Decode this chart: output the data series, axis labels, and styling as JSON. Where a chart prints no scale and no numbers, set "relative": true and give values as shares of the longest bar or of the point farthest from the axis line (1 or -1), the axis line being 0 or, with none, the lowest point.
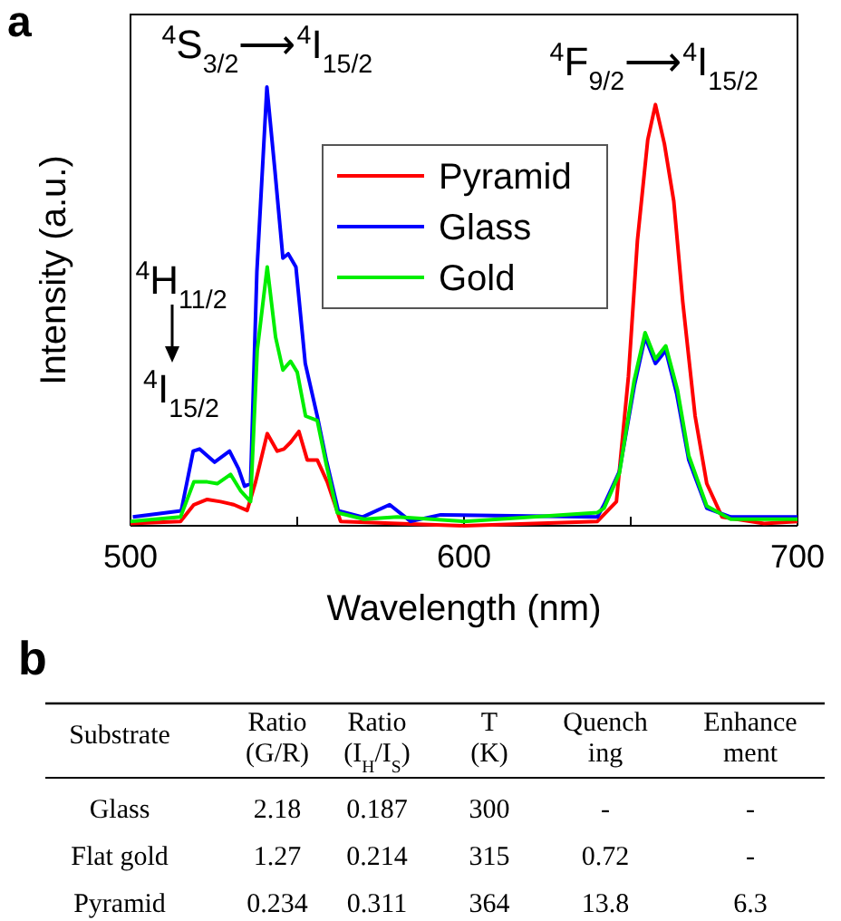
{
  "chart_data": [
    {
      "type": "line",
      "title": "a",
      "xlabel": "Wavelength (nm)",
      "ylabel": "Intensity (a.u.)",
      "relative": true,
      "xlim": [
        500,
        700
      ],
      "xticks": [
        500,
        {
          "value": 550,
          "label": null
        },
        600,
        {
          "value": 650,
          "label": null
        },
        700
      ],
      "legend": "top right",
      "grid": false,
      "marker": "none",
      "line_style": "solid",
      "annotations": [
        {
          "text": "$^{4}$S$_{3/2}$⟶$^{4}$I$_{15/2}$",
          "x": 541,
          "y": 1.0
        },
        {
          "text": "$^{4}$F$_{9/2}$⟶$^{4}$I$_{15/2}$",
          "x": 657,
          "y": 0.96
        },
        "$^{4}$H$_{11/2}$",
        "$^{4}$I$_{15/2}$"
      ],
      "series": [
        {
          "name": "Pyramid",
          "color": "#ff0000",
          "x": [
            500,
            515,
            519,
            523,
            527,
            531,
            535,
            537.5,
            541,
            544,
            546,
            548,
            550.5,
            553,
            556,
            559,
            563,
            580,
            600,
            640,
            645.7,
            649.3,
            652,
            655.1,
            657.4,
            660.1,
            662.9,
            665.6,
            669.3,
            672.8,
            677.4,
            690,
            700
          ],
          "values": [
            0.005,
            0.01,
            0.048,
            0.06,
            0.055,
            0.048,
            0.035,
            0.1,
            0.21,
            0.17,
            0.175,
            0.19,
            0.215,
            0.15,
            0.15,
            0.1,
            0.01,
            0.005,
            0,
            0.01,
            0.055,
            0.34,
            0.65,
            0.88,
            0.96,
            0.87,
            0.74,
            0.51,
            0.25,
            0.096,
            0.02,
            0.005,
            0.01
          ]
        },
        {
          "name": "Glass",
          "color": "#0000ff",
          "x": [
            500.7,
            515.2,
            518.8,
            520.7,
            525.2,
            529.7,
            532.4,
            534.2,
            536,
            537.9,
            540.9,
            543.3,
            545.7,
            547.3,
            549.6,
            552.4,
            556,
            558.7,
            562.3,
            569.6,
            577.7,
            584,
            593,
            640,
            642,
            646.6,
            651.1,
            654.3,
            657.4,
            660.5,
            663.8,
            667.4,
            672.8,
            680,
            700
          ],
          "values": [
            0.02,
            0.034,
            0.17,
            0.175,
            0.145,
            0.17,
            0.13,
            0.09,
            0.096,
            0.58,
            1.0,
            0.81,
            0.61,
            0.62,
            0.59,
            0.37,
            0.25,
            0.15,
            0.034,
            0.02,
            0.048,
            0.01,
            0.025,
            0.02,
            0.048,
            0.124,
            0.32,
            0.43,
            0.37,
            0.4,
            0.3,
            0.15,
            0.04,
            0.02,
            0.02
          ]
        },
        {
          "name": "Gold",
          "color": "#00ee00",
          "x": [
            500,
            515,
            519,
            523,
            526,
            530,
            533,
            536,
            538,
            541,
            543.5,
            545.7,
            548,
            550,
            552.5,
            556,
            558.7,
            562,
            570,
            580,
            600,
            640,
            642,
            646.6,
            651,
            654.3,
            657.4,
            660.5,
            664,
            667.4,
            672.8,
            680,
            700
          ],
          "values": [
            0.01,
            0.02,
            0.1,
            0.1,
            0.096,
            0.117,
            0.08,
            0.055,
            0.4,
            0.59,
            0.43,
            0.355,
            0.375,
            0.35,
            0.25,
            0.24,
            0.14,
            0.03,
            0.015,
            0.02,
            0.01,
            0.03,
            0.04,
            0.12,
            0.33,
            0.44,
            0.38,
            0.41,
            0.31,
            0.16,
            0.045,
            0.015,
            0.015
          ]
        }
      ]
    },
    {
      "type": "other",
      "title": "b",
      "data_labels": true,
      "legend_title": "Substrate",
      "categories": [
        "Ratio (G/R)",
        "Ratio (I$_{H}$/I$_{S}$)",
        "T (K)",
        "Quench ing",
        "Enhance ment"
      ],
      "series": [
        {
          "name": "Glass",
          "values": [
            2.18,
            0.187,
            300,
            null,
            null
          ],
          "value_labels": [
            "2.18",
            "0.187",
            "300",
            "-",
            "-"
          ]
        },
        {
          "name": "Flat gold",
          "values": [
            1.27,
            0.214,
            315,
            0.72,
            null
          ],
          "value_labels": [
            "1.27",
            "0.214",
            "315",
            "0.72",
            "-"
          ]
        },
        {
          "name": "Pyramid",
          "values": [
            0.234,
            0.311,
            364,
            13.8,
            6.3
          ],
          "value_labels": [
            "0.234",
            "0.311",
            "364",
            "13.8",
            "6.3"
          ]
        }
      ]
    }
  ]
}
